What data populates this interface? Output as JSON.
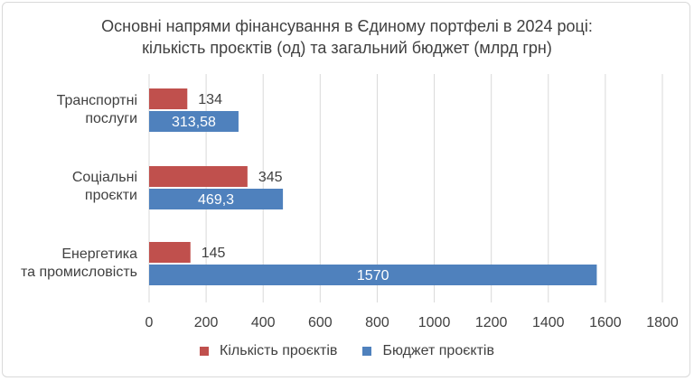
{
  "chart_data": {
    "type": "bar",
    "orientation": "horizontal",
    "title_line1": "Основні напрями фінансування в Єдиному портфелі в 2024 році:",
    "title_line2": "кількість проєктів (од) та загальний бюджет (млрд грн)",
    "categories": [
      [
        "Транспортні",
        "послуги"
      ],
      [
        "Соціальні",
        "проєкти"
      ],
      [
        "Енергетика",
        "та промисловість"
      ]
    ],
    "series": [
      {
        "name": "Кількість проєктів",
        "color": "#c0504d",
        "values": [
          134,
          345,
          145
        ],
        "labels": [
          "134",
          "345",
          "145"
        ]
      },
      {
        "name": "Бюджет проєктів",
        "color": "#4f81bd",
        "values": [
          313.58,
          469.3,
          1570
        ],
        "labels": [
          "313,58",
          "469,3",
          "1570"
        ]
      }
    ],
    "xlim": [
      0,
      1800
    ],
    "ticks": [
      0,
      200,
      400,
      600,
      800,
      1000,
      1200,
      1400,
      1600,
      1800
    ],
    "grid": true,
    "legend_position": "bottom"
  }
}
